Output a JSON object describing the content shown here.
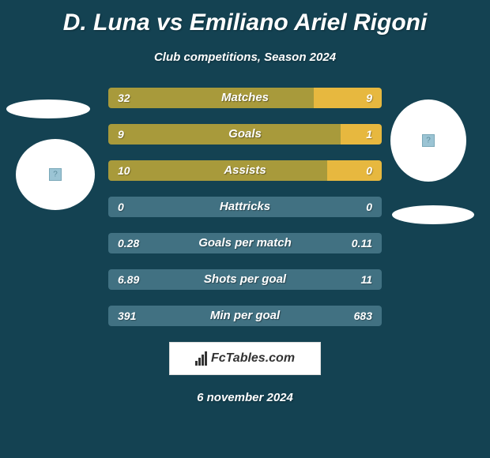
{
  "title": "D. Luna vs Emiliano Ariel Rigoni",
  "subtitle": "Club competitions, Season 2024",
  "date": "6 november 2024",
  "logo_text": "FcTables.com",
  "colors": {
    "background": "#144252",
    "bar_left": "#a89a3b",
    "bar_right": "#e7b83f",
    "bar_empty": "#417182",
    "text": "#ffffff"
  },
  "stats": [
    {
      "label": "Matches",
      "left_value": "32",
      "right_value": "9",
      "left_width": 75,
      "right_width": 25,
      "left_empty": false,
      "right_empty": false
    },
    {
      "label": "Goals",
      "left_value": "9",
      "right_value": "1",
      "left_width": 85,
      "right_width": 15,
      "left_empty": false,
      "right_empty": false
    },
    {
      "label": "Assists",
      "left_value": "10",
      "right_value": "0",
      "left_width": 80,
      "right_width": 20,
      "left_empty": false,
      "right_empty": false
    },
    {
      "label": "Hattricks",
      "left_value": "0",
      "right_value": "0",
      "left_width": 50,
      "right_width": 50,
      "left_empty": true,
      "right_empty": true
    },
    {
      "label": "Goals per match",
      "left_value": "0.28",
      "right_value": "0.11",
      "left_width": 50,
      "right_width": 50,
      "left_empty": true,
      "right_empty": true
    },
    {
      "label": "Shots per goal",
      "left_value": "6.89",
      "right_value": "11",
      "left_width": 50,
      "right_width": 50,
      "left_empty": true,
      "right_empty": true
    },
    {
      "label": "Min per goal",
      "left_value": "391",
      "right_value": "683",
      "left_width": 50,
      "right_width": 50,
      "left_empty": true,
      "right_empty": true
    }
  ]
}
